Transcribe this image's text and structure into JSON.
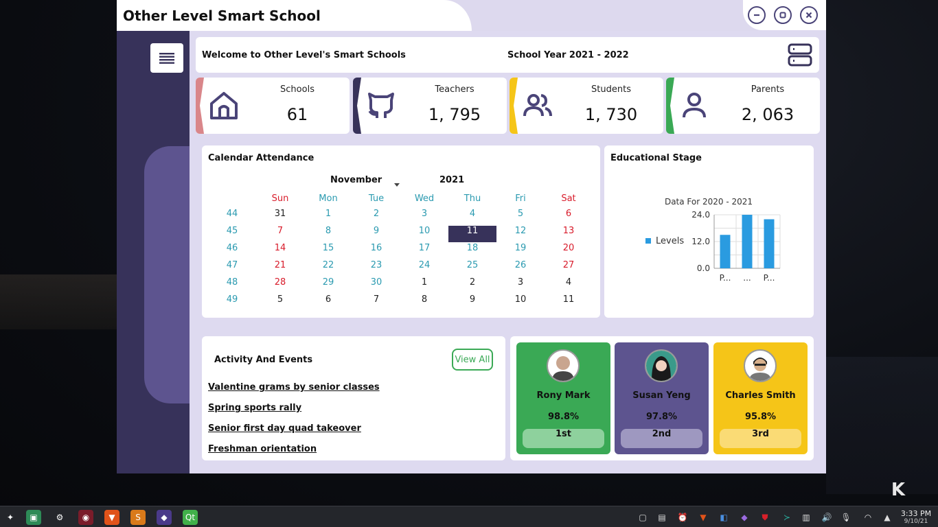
{
  "window": {
    "title": "Other Level Smart School"
  },
  "header": {
    "welcome": "Welcome to Other Level's Smart Schools",
    "school_year": "School Year 2021 - 2022"
  },
  "stats": [
    {
      "label": "Schools",
      "value": "61",
      "icon": "home-icon",
      "color": "#d9868a"
    },
    {
      "label": "Teachers",
      "value": "1, 795",
      "icon": "github-icon",
      "color": "#37325a"
    },
    {
      "label": "Students",
      "value": "1, 730",
      "icon": "users-icon",
      "color": "#f5c518"
    },
    {
      "label": "Parents",
      "value": "2, 063",
      "icon": "user-icon",
      "color": "#3aa955"
    }
  ],
  "calendar": {
    "title": "Calendar Attendance",
    "month": "November",
    "year": "2021",
    "weekdays": [
      "Sun",
      "Mon",
      "Tue",
      "Wed",
      "Thu",
      "Fri",
      "Sat"
    ],
    "weeks": [
      {
        "num": "44",
        "days": [
          "31",
          "1",
          "2",
          "3",
          "4",
          "5",
          "6"
        ]
      },
      {
        "num": "45",
        "days": [
          "7",
          "8",
          "9",
          "10",
          "11",
          "12",
          "13"
        ]
      },
      {
        "num": "46",
        "days": [
          "14",
          "15",
          "16",
          "17",
          "18",
          "19",
          "20"
        ]
      },
      {
        "num": "47",
        "days": [
          "21",
          "22",
          "23",
          "24",
          "25",
          "26",
          "27"
        ]
      },
      {
        "num": "48",
        "days": [
          "28",
          "29",
          "30",
          "1",
          "2",
          "3",
          "4"
        ]
      },
      {
        "num": "49",
        "days": [
          "5",
          "6",
          "7",
          "8",
          "9",
          "10",
          "11"
        ]
      }
    ],
    "selected_day": "11",
    "colors": {
      "weekend": "#d81b2a",
      "weekday": "#2a9ab0",
      "other_month": "#222222",
      "selected_bg": "#37325a",
      "header_weekday": "#2a9ab0",
      "header_weekend": "#d81b2a"
    }
  },
  "stage": {
    "title": "Educational Stage",
    "chart_data": {
      "type": "bar",
      "title": "Data For 2020 - 2021",
      "categories": [
        "P...",
        "...",
        "P..."
      ],
      "series": [
        {
          "name": "Levels",
          "values": [
            15,
            24,
            22
          ]
        }
      ],
      "yticks": [
        "24.0",
        "12.0",
        "0.0"
      ],
      "ylim": [
        0,
        24
      ],
      "legend_position": "left",
      "color": "#2a9be0"
    }
  },
  "activity": {
    "title": "Activity And Events",
    "view_all": "View All",
    "items": [
      "Valentine grams by senior classes",
      "Spring sports rally",
      "Senior first day quad takeover",
      "Freshman orientation"
    ]
  },
  "ranking": [
    {
      "name": "Rony Mark",
      "pct": "98.8%",
      "rank": "1st",
      "bg": "#3aa955",
      "badge": "#8ed19d"
    },
    {
      "name": "Susan Yeng",
      "pct": "97.8%",
      "rank": "2nd",
      "bg": "#5d548f",
      "badge": "#9e98c0"
    },
    {
      "name": "Charles Smith",
      "pct": "95.8%",
      "rank": "3rd",
      "bg": "#f5c518",
      "badge": "#fadb75"
    }
  ],
  "taskbar": {
    "clock_time": "3:33 PM",
    "clock_date": "9/10/21"
  }
}
